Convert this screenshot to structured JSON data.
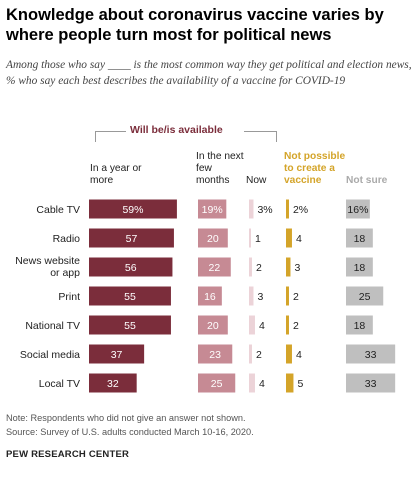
{
  "title": "Knowledge about coronavirus vaccine varies by where people turn most for political news",
  "subtitle": "Among those who say ____ is the most common way they get political and election news, % who say each best describes the availability of a vaccine for COVID-19",
  "group_label": "Will be/is available",
  "columns": {
    "year": "In a year or more",
    "months": "In the next few months",
    "now": "Now",
    "not_possible": "Not possible to create a vaccine",
    "not_sure": "Not sure"
  },
  "colors": {
    "year": "#7b2d3b",
    "months": "#c68a94",
    "now": "#ecd3d8",
    "not_possible": "#d4a429",
    "not_sure": "#bfbfbf",
    "label_dark_text": "#ffffff",
    "label_light_text": "#222222"
  },
  "chart_data": {
    "type": "bar",
    "categories": [
      "Cable TV",
      "Radio",
      "News website or app",
      "Print",
      "National TV",
      "Social media",
      "Local TV"
    ],
    "series": [
      {
        "name": "In a year or more",
        "values": [
          59,
          57,
          56,
          55,
          55,
          37,
          32
        ],
        "labels": [
          "59%",
          "57",
          "56",
          "55",
          "55",
          "37",
          "32"
        ]
      },
      {
        "name": "In the next few months",
        "values": [
          19,
          20,
          22,
          16,
          20,
          23,
          25
        ],
        "labels": [
          "19%",
          "20",
          "22",
          "16",
          "20",
          "23",
          "25"
        ]
      },
      {
        "name": "Now",
        "values": [
          3,
          1,
          2,
          3,
          4,
          2,
          4
        ],
        "labels": [
          "3%",
          "1",
          "2",
          "3",
          "4",
          "2",
          "4"
        ]
      },
      {
        "name": "Not possible to create a vaccine",
        "values": [
          2,
          4,
          3,
          2,
          2,
          4,
          5
        ],
        "labels": [
          "2%",
          "4",
          "3",
          "2",
          "2",
          "4",
          "5"
        ]
      },
      {
        "name": "Not sure",
        "values": [
          16,
          18,
          18,
          25,
          18,
          33,
          33
        ],
        "labels": [
          "16%",
          "18",
          "18",
          "25",
          "18",
          "33",
          "33"
        ]
      }
    ]
  },
  "notes": [
    "Note: Respondents who did not give an answer not shown.",
    "Source: Survey of U.S. adults conducted March 10-16, 2020."
  ],
  "brand": "PEW RESEARCH CENTER"
}
